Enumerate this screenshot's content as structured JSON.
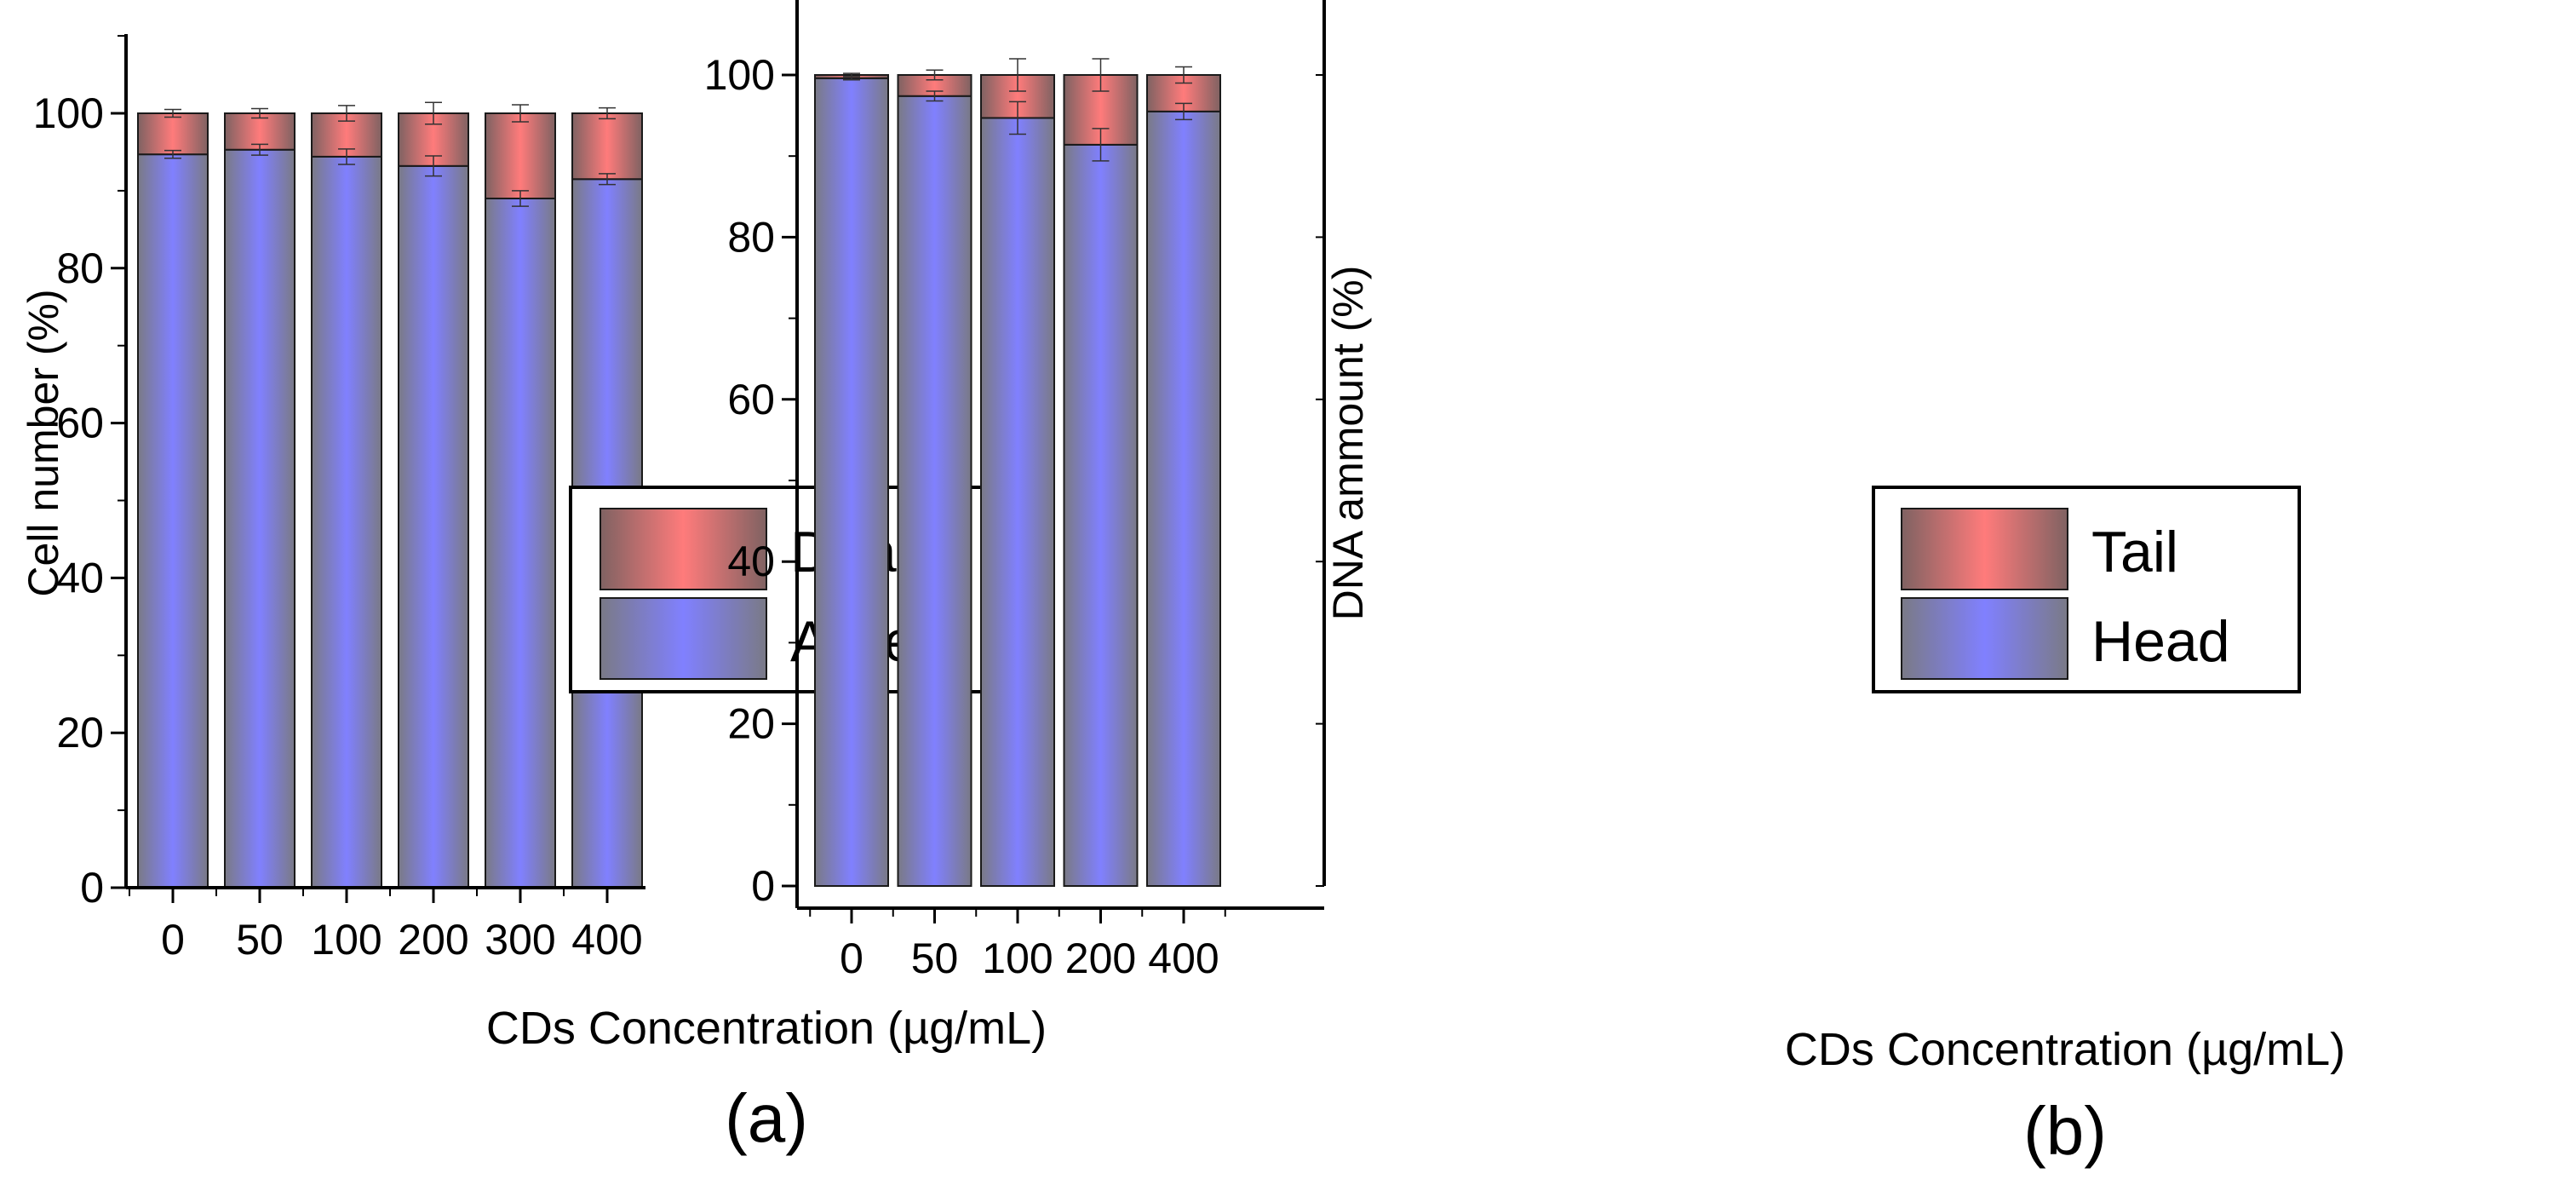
{
  "colors": {
    "bar_edge": "#1a1a1a",
    "lower_center": "#8080ff",
    "lower_edge": "#7a7a86",
    "upper_center": "#ff7b7b",
    "upper_edge": "#7f6262",
    "error_bar": "#333333"
  },
  "chart_data": [
    {
      "type": "bar",
      "stacked": true,
      "panel_label": "(a)",
      "xlabel": "CDs Concentration  (µg/mL)",
      "ylabel": "Cell number (%)",
      "ylim": [
        0,
        110
      ],
      "yticks": [
        0,
        20,
        40,
        60,
        80,
        100
      ],
      "categories": [
        "0",
        "50",
        "100",
        "200",
        "300",
        "400"
      ],
      "series": [
        {
          "name": "Alive",
          "color_key": "lower",
          "values": [
            94.7,
            95.3,
            94.4,
            93.2,
            89.0,
            91.5
          ],
          "errors": [
            0.5,
            0.7,
            1.0,
            1.3,
            1.0,
            0.7
          ]
        },
        {
          "name": "Dead",
          "color_key": "upper",
          "values": [
            5.3,
            4.7,
            5.6,
            6.8,
            11.0,
            8.5
          ],
          "errors": [
            0.5,
            0.6,
            1.0,
            1.4,
            1.1,
            0.7
          ]
        }
      ],
      "legend": {
        "position": "center-right",
        "entries": [
          "Dead",
          "Alive"
        ]
      }
    },
    {
      "type": "bar",
      "stacked": true,
      "panel_label": "(b)",
      "xlabel": "CDs Concentration  (µg/mL)",
      "ylabel": "DNA ammount (%)",
      "ylim": [
        0,
        105
      ],
      "yticks": [
        0,
        20,
        40,
        60,
        80,
        100
      ],
      "categories": [
        "0",
        "50",
        "100",
        "200",
        "400"
      ],
      "series": [
        {
          "name": "Head",
          "color_key": "lower",
          "values": [
            99.6,
            97.4,
            94.7,
            91.4,
            95.5
          ],
          "errors": [
            0.2,
            0.6,
            2.0,
            2.0,
            1.0
          ]
        },
        {
          "name": "Tail",
          "color_key": "upper",
          "values": [
            0.4,
            2.6,
            5.3,
            8.6,
            4.5
          ],
          "errors": [
            0.2,
            0.6,
            2.0,
            2.0,
            1.0
          ]
        }
      ],
      "legend": {
        "position": "center-right",
        "entries": [
          "Tail",
          "Head"
        ]
      }
    }
  ]
}
